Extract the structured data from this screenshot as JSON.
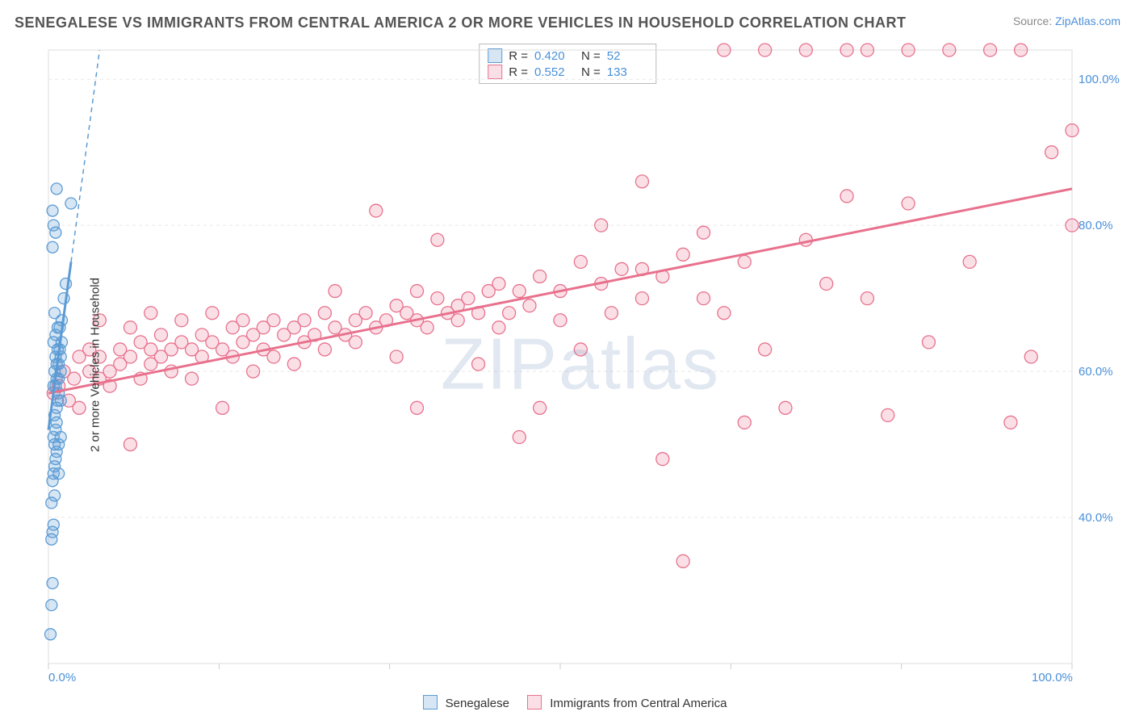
{
  "title": "SENEGALESE VS IMMIGRANTS FROM CENTRAL AMERICA 2 OR MORE VEHICLES IN HOUSEHOLD CORRELATION CHART",
  "source_prefix": "Source: ",
  "source_link": "ZipAtlas.com",
  "ylabel": "2 or more Vehicles in Household",
  "watermark": "ZIPatlas",
  "chart": {
    "type": "scatter",
    "xlim": [
      0,
      100
    ],
    "ylim": [
      20,
      104
    ],
    "x_ticks": [
      0,
      100
    ],
    "x_tick_labels": [
      "0.0%",
      "100.0%"
    ],
    "x_ticks_minor": [
      16.67,
      33.33,
      50,
      66.67,
      83.33
    ],
    "y_ticks": [
      40,
      60,
      80,
      100
    ],
    "y_tick_labels": [
      "40.0%",
      "60.0%",
      "80.0%",
      "100.0%"
    ],
    "background_color": "#ffffff",
    "grid_color": "#e8e8e8",
    "axis_color": "#cccccc",
    "plot_border_color": "#dddddd"
  },
  "series": {
    "senegalese": {
      "label": "Senegalese",
      "color_stroke": "#5b9bd5",
      "color_fill": "rgba(91,155,213,0.25)",
      "marker_radius": 7,
      "R": "0.420",
      "N": "52",
      "trend_line": {
        "x1": 0,
        "y1": 52,
        "x2": 5,
        "y2": 104,
        "solid_ymax": 75
      },
      "points": [
        [
          0.2,
          24
        ],
        [
          0.3,
          28
        ],
        [
          0.4,
          31
        ],
        [
          0.3,
          37
        ],
        [
          0.4,
          38
        ],
        [
          0.5,
          39
        ],
        [
          0.3,
          42
        ],
        [
          0.6,
          43
        ],
        [
          0.4,
          45
        ],
        [
          0.5,
          46
        ],
        [
          0.6,
          47
        ],
        [
          1.0,
          46
        ],
        [
          0.7,
          48
        ],
        [
          0.8,
          49
        ],
        [
          0.6,
          50
        ],
        [
          0.5,
          51
        ],
        [
          0.7,
          52
        ],
        [
          0.8,
          53
        ],
        [
          1.0,
          50
        ],
        [
          1.2,
          51
        ],
        [
          0.6,
          54
        ],
        [
          0.8,
          55
        ],
        [
          0.9,
          56
        ],
        [
          1.0,
          57
        ],
        [
          1.2,
          56
        ],
        [
          0.5,
          58
        ],
        [
          0.7,
          58
        ],
        [
          0.8,
          59
        ],
        [
          1.0,
          59
        ],
        [
          1.2,
          60
        ],
        [
          0.6,
          60
        ],
        [
          0.8,
          61
        ],
        [
          1.0,
          61
        ],
        [
          1.2,
          62
        ],
        [
          0.7,
          62
        ],
        [
          0.9,
          63
        ],
        [
          1.1,
          63
        ],
        [
          1.3,
          64
        ],
        [
          0.5,
          64
        ],
        [
          0.7,
          65
        ],
        [
          0.9,
          66
        ],
        [
          1.1,
          66
        ],
        [
          1.3,
          67
        ],
        [
          0.6,
          68
        ],
        [
          1.5,
          70
        ],
        [
          1.7,
          72
        ],
        [
          0.4,
          77
        ],
        [
          0.7,
          79
        ],
        [
          0.5,
          80
        ],
        [
          0.4,
          82
        ],
        [
          2.2,
          83
        ],
        [
          0.8,
          85
        ]
      ]
    },
    "central_america": {
      "label": "Immigrants from Central America",
      "color_stroke": "#e8718d",
      "color_fill": "rgba(232,113,141,0.22)",
      "marker_radius": 8,
      "R": "0.552",
      "N": "133",
      "trend_line": {
        "x1": 0,
        "y1": 57,
        "x2": 100,
        "y2": 85
      },
      "points": [
        [
          0.5,
          57
        ],
        [
          1,
          58
        ],
        [
          1.5,
          60
        ],
        [
          2,
          56
        ],
        [
          2.5,
          59
        ],
        [
          3,
          62
        ],
        [
          3,
          55
        ],
        [
          4,
          60
        ],
        [
          4,
          63
        ],
        [
          5,
          59
        ],
        [
          5,
          62
        ],
        [
          5,
          67
        ],
        [
          6,
          60
        ],
        [
          6,
          58
        ],
        [
          7,
          61
        ],
        [
          7,
          63
        ],
        [
          8,
          62
        ],
        [
          8,
          66
        ],
        [
          8,
          50
        ],
        [
          9,
          64
        ],
        [
          9,
          59
        ],
        [
          10,
          63
        ],
        [
          10,
          61
        ],
        [
          10,
          68
        ],
        [
          11,
          62
        ],
        [
          11,
          65
        ],
        [
          12,
          63
        ],
        [
          12,
          60
        ],
        [
          13,
          64
        ],
        [
          13,
          67
        ],
        [
          14,
          63
        ],
        [
          14,
          59
        ],
        [
          15,
          65
        ],
        [
          15,
          62
        ],
        [
          16,
          64
        ],
        [
          16,
          68
        ],
        [
          17,
          63
        ],
        [
          17,
          55
        ],
        [
          18,
          66
        ],
        [
          18,
          62
        ],
        [
          19,
          64
        ],
        [
          19,
          67
        ],
        [
          20,
          65
        ],
        [
          20,
          60
        ],
        [
          21,
          66
        ],
        [
          21,
          63
        ],
        [
          22,
          67
        ],
        [
          22,
          62
        ],
        [
          23,
          65
        ],
        [
          24,
          66
        ],
        [
          24,
          61
        ],
        [
          25,
          67
        ],
        [
          25,
          64
        ],
        [
          26,
          65
        ],
        [
          27,
          68
        ],
        [
          27,
          63
        ],
        [
          28,
          66
        ],
        [
          28,
          71
        ],
        [
          29,
          65
        ],
        [
          30,
          67
        ],
        [
          30,
          64
        ],
        [
          31,
          68
        ],
        [
          32,
          66
        ],
        [
          32,
          82
        ],
        [
          33,
          67
        ],
        [
          34,
          69
        ],
        [
          34,
          62
        ],
        [
          35,
          68
        ],
        [
          36,
          67
        ],
        [
          36,
          71
        ],
        [
          37,
          66
        ],
        [
          38,
          70
        ],
        [
          38,
          78
        ],
        [
          39,
          68
        ],
        [
          40,
          69
        ],
        [
          40,
          67
        ],
        [
          41,
          70
        ],
        [
          42,
          68
        ],
        [
          42,
          61
        ],
        [
          43,
          71
        ],
        [
          44,
          72
        ],
        [
          44,
          66
        ],
        [
          45,
          68
        ],
        [
          46,
          71
        ],
        [
          46,
          51
        ],
        [
          47,
          69
        ],
        [
          48,
          55
        ],
        [
          48,
          73
        ],
        [
          50,
          71
        ],
        [
          50,
          67
        ],
        [
          52,
          75
        ],
        [
          52,
          63
        ],
        [
          54,
          72
        ],
        [
          54,
          80
        ],
        [
          55,
          68
        ],
        [
          56,
          74
        ],
        [
          58,
          70
        ],
        [
          58,
          86
        ],
        [
          60,
          73
        ],
        [
          60,
          48
        ],
        [
          62,
          76
        ],
        [
          62,
          34
        ],
        [
          64,
          79
        ],
        [
          64,
          70
        ],
        [
          66,
          68
        ],
        [
          66,
          104
        ],
        [
          68,
          75
        ],
        [
          70,
          63
        ],
        [
          70,
          104
        ],
        [
          72,
          55
        ],
        [
          74,
          78
        ],
        [
          74,
          104
        ],
        [
          76,
          72
        ],
        [
          78,
          84
        ],
        [
          78,
          104
        ],
        [
          80,
          70
        ],
        [
          80,
          104
        ],
        [
          82,
          54
        ],
        [
          84,
          83
        ],
        [
          84,
          104
        ],
        [
          86,
          64
        ],
        [
          88,
          104
        ],
        [
          90,
          75
        ],
        [
          92,
          104
        ],
        [
          94,
          53
        ],
        [
          95,
          104
        ],
        [
          96,
          62
        ],
        [
          98,
          90
        ],
        [
          100,
          80
        ],
        [
          100,
          93
        ],
        [
          68,
          53
        ],
        [
          58,
          74
        ],
        [
          36,
          55
        ]
      ]
    }
  },
  "stats_legend": {
    "R_label": "R =",
    "N_label": "N ="
  }
}
